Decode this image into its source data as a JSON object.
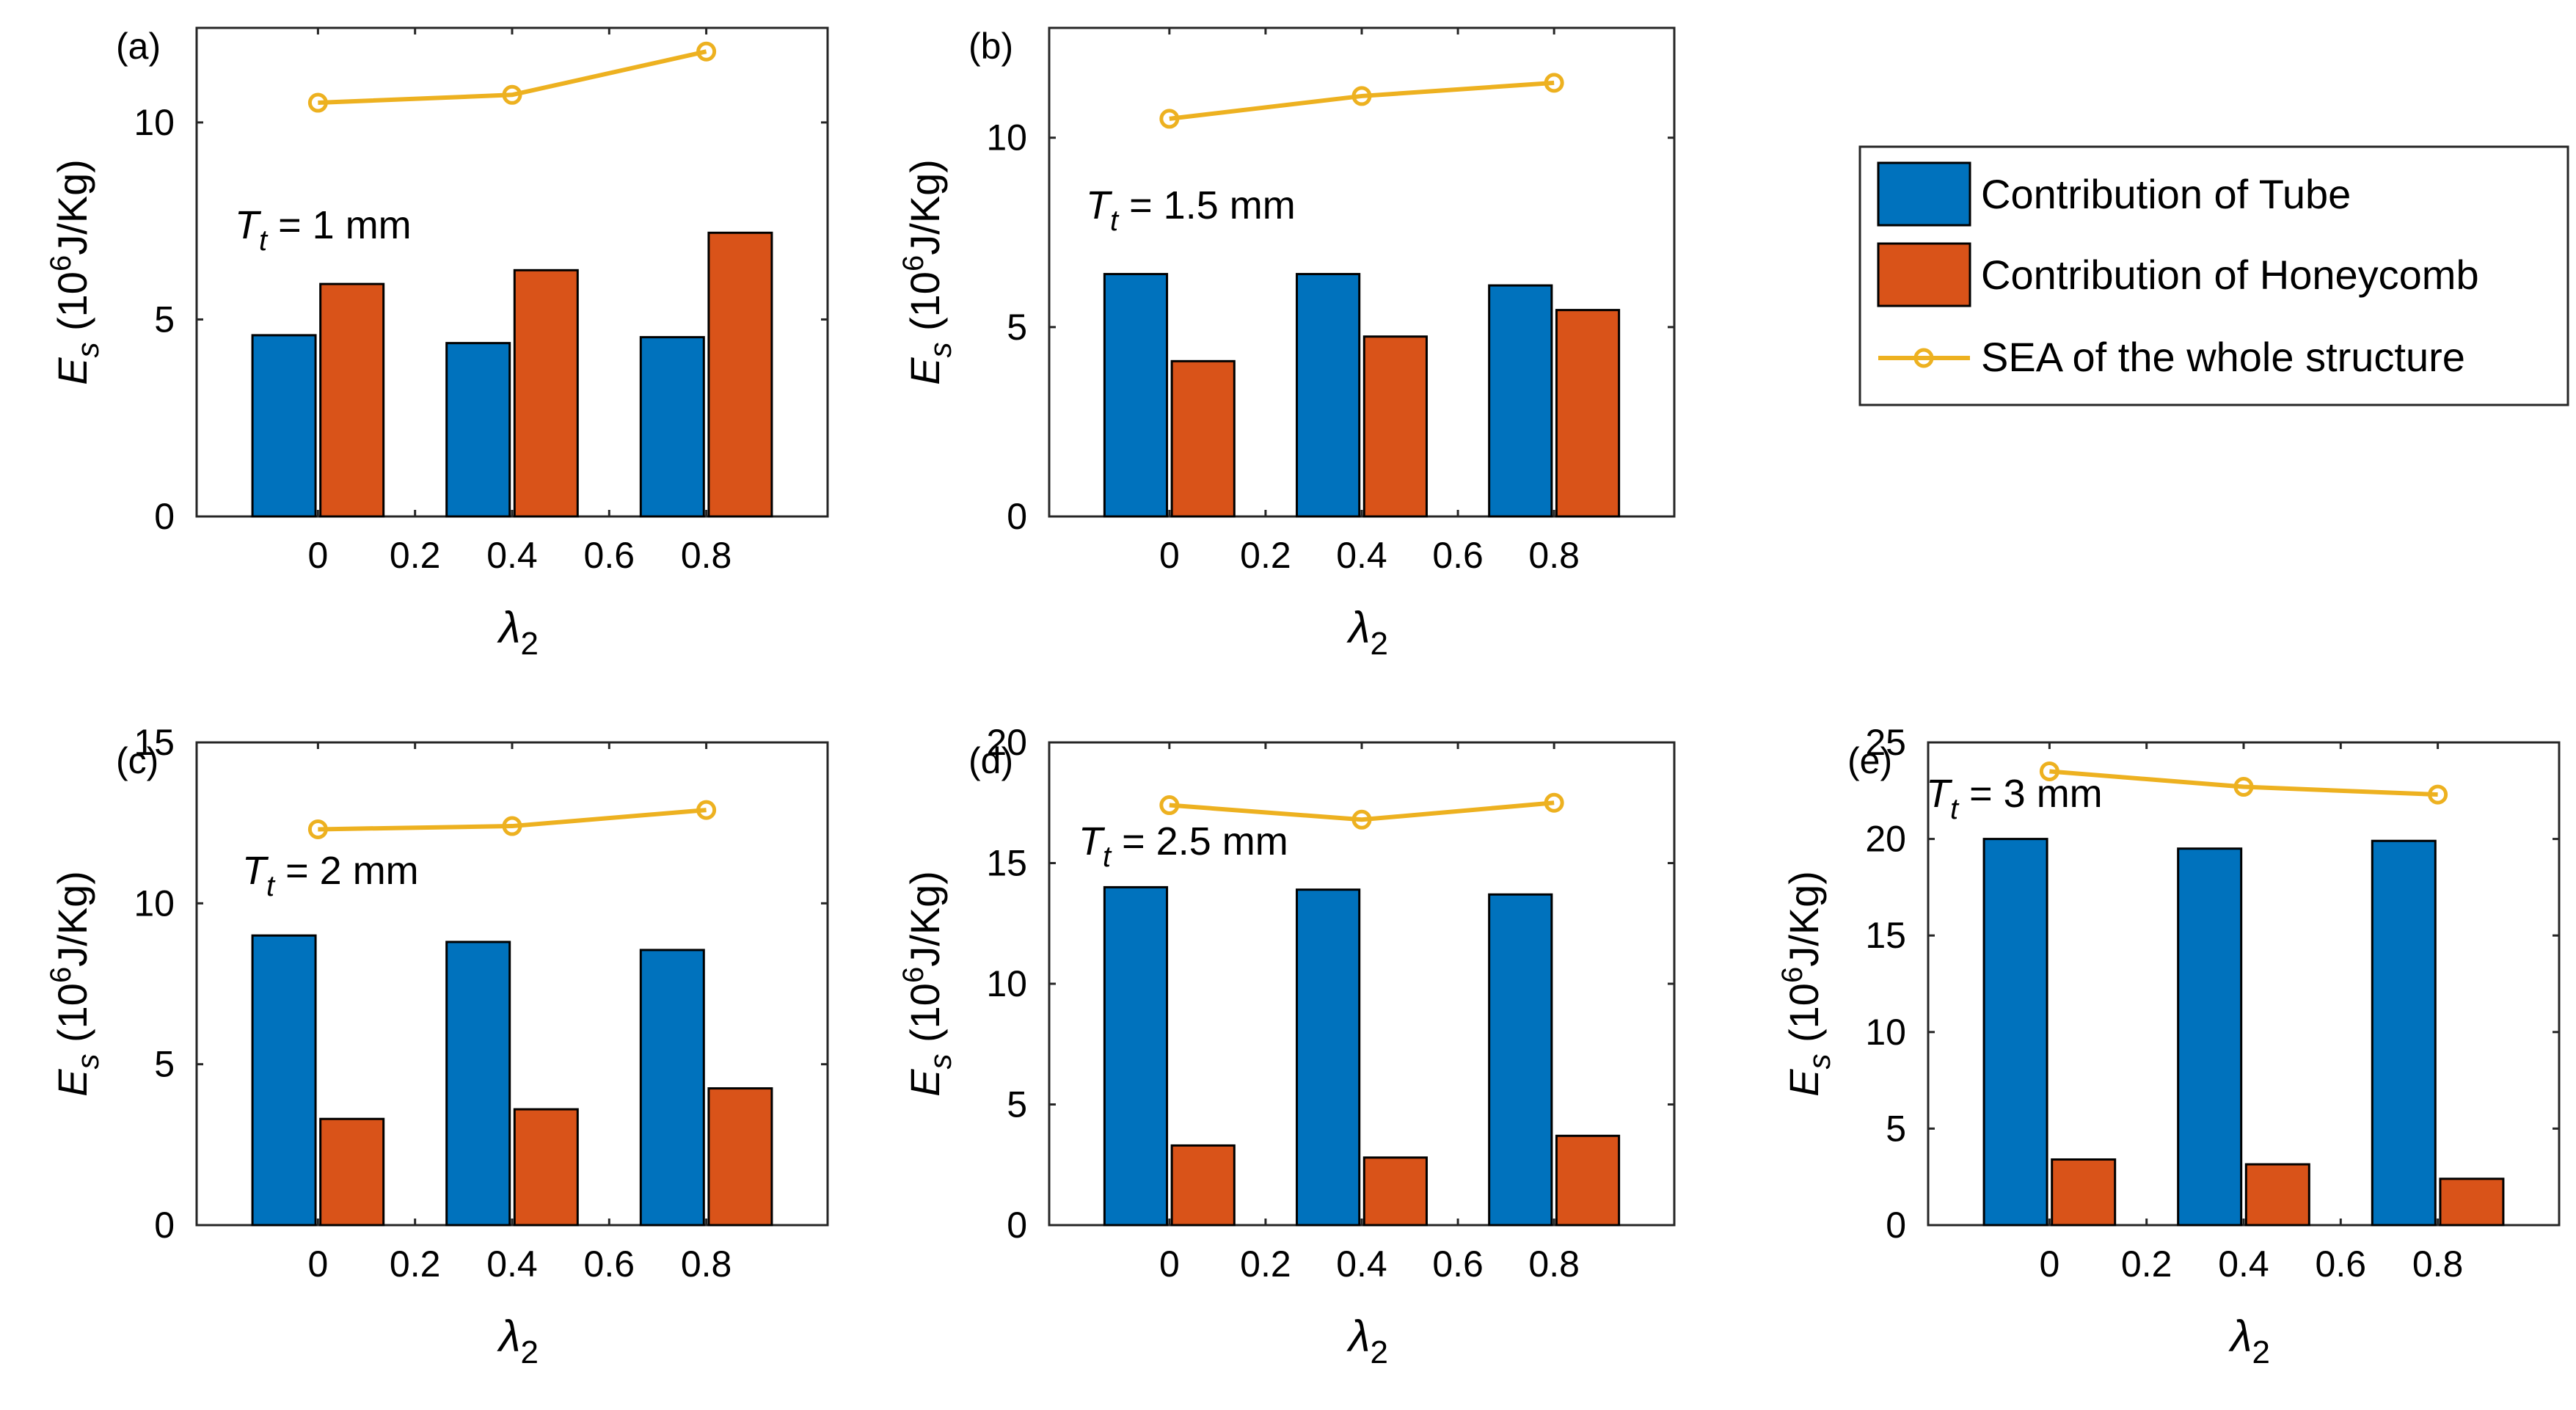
{
  "legend": {
    "tube_label": "Contribution of Tube",
    "honeycomb_label": "Contribution of Honeycomb",
    "sea_label": "SEA of the whole structure"
  },
  "colors": {
    "tube": "#0072BD",
    "honeycomb": "#D95319",
    "sea": "#EDB120"
  },
  "chart_data": [
    {
      "type": "bar",
      "panel_label": "(a)",
      "annotation": {
        "symbol": "T",
        "subscript": "t",
        "value": " = 1 mm"
      },
      "ylabel": {
        "symbol": "E",
        "subscript": "s",
        "open": " (10",
        "exponent": "6",
        "unit": "J/Kg)"
      },
      "xlabel": {
        "symbol": "λ",
        "subscript": "2"
      },
      "xlim": [
        -0.25,
        1.05
      ],
      "ylim": [
        0,
        12.4
      ],
      "xticks": [
        0,
        0.2,
        0.4,
        0.6,
        0.8
      ],
      "xtick_labels": [
        "0",
        "0.2",
        "0.4",
        "0.6",
        "0.8"
      ],
      "yticks": [
        0,
        5,
        10
      ],
      "ytick_labels": [
        "0",
        "5",
        "10"
      ],
      "categories": [
        0,
        0.4,
        0.8
      ],
      "series": [
        {
          "name": "Contribution of Tube",
          "values": [
            4.6,
            4.4,
            4.55
          ]
        },
        {
          "name": "Contribution of Honeycomb",
          "values": [
            5.9,
            6.25,
            7.2
          ]
        },
        {
          "name": "SEA of the whole structure",
          "values": [
            10.5,
            10.7,
            11.8
          ]
        }
      ]
    },
    {
      "type": "bar",
      "panel_label": "(b)",
      "annotation": {
        "symbol": "T",
        "subscript": "t",
        "value": " = 1.5 mm"
      },
      "ylabel": {
        "symbol": "E",
        "subscript": "s",
        "open": " (10",
        "exponent": "6",
        "unit": "J/Kg)"
      },
      "xlabel": {
        "symbol": "λ",
        "subscript": "2"
      },
      "xlim": [
        -0.25,
        1.05
      ],
      "ylim": [
        0,
        12.9
      ],
      "xticks": [
        0,
        0.2,
        0.4,
        0.6,
        0.8
      ],
      "xtick_labels": [
        "0",
        "0.2",
        "0.4",
        "0.6",
        "0.8"
      ],
      "yticks": [
        0,
        5,
        10
      ],
      "ytick_labels": [
        "0",
        "5",
        "10"
      ],
      "categories": [
        0,
        0.4,
        0.8
      ],
      "series": [
        {
          "name": "Contribution of Tube",
          "values": [
            6.4,
            6.4,
            6.1
          ]
        },
        {
          "name": "Contribution of Honeycomb",
          "values": [
            4.1,
            4.75,
            5.45
          ]
        },
        {
          "name": "SEA of the whole structure",
          "values": [
            10.5,
            11.1,
            11.45
          ]
        }
      ]
    },
    {
      "type": "bar",
      "panel_label": "(c)",
      "annotation": {
        "symbol": "T",
        "subscript": "t",
        "value": " = 2 mm"
      },
      "ylabel": {
        "symbol": "E",
        "subscript": "s",
        "open": " (10",
        "exponent": "6",
        "unit": "J/Kg)"
      },
      "xlabel": {
        "symbol": "λ",
        "subscript": "2"
      },
      "xlim": [
        -0.25,
        1.05
      ],
      "ylim": [
        0,
        15
      ],
      "xticks": [
        0,
        0.2,
        0.4,
        0.6,
        0.8
      ],
      "xtick_labels": [
        "0",
        "0.2",
        "0.4",
        "0.6",
        "0.8"
      ],
      "yticks": [
        0,
        5,
        10,
        15
      ],
      "ytick_labels": [
        "0",
        "5",
        "10",
        "15"
      ],
      "categories": [
        0,
        0.4,
        0.8
      ],
      "series": [
        {
          "name": "Contribution of Tube",
          "values": [
            9.0,
            8.8,
            8.55
          ]
        },
        {
          "name": "Contribution of Honeycomb",
          "values": [
            3.3,
            3.6,
            4.25
          ]
        },
        {
          "name": "SEA of the whole structure",
          "values": [
            12.3,
            12.4,
            12.9
          ]
        }
      ]
    },
    {
      "type": "bar",
      "panel_label": "(d)",
      "annotation": {
        "symbol": "T",
        "subscript": "t",
        "value": " = 2.5 mm"
      },
      "ylabel": {
        "symbol": "E",
        "subscript": "s",
        "open": " (10",
        "exponent": "6",
        "unit": "J/Kg)"
      },
      "xlabel": {
        "symbol": "λ",
        "subscript": "2"
      },
      "xlim": [
        -0.25,
        1.05
      ],
      "ylim": [
        0,
        20
      ],
      "xticks": [
        0,
        0.2,
        0.4,
        0.6,
        0.8
      ],
      "xtick_labels": [
        "0",
        "0.2",
        "0.4",
        "0.6",
        "0.8"
      ],
      "yticks": [
        0,
        5,
        10,
        15,
        20
      ],
      "ytick_labels": [
        "0",
        "5",
        "10",
        "15",
        "20"
      ],
      "categories": [
        0,
        0.4,
        0.8
      ],
      "series": [
        {
          "name": "Contribution of Tube",
          "values": [
            14.0,
            13.9,
            13.7
          ]
        },
        {
          "name": "Contribution of Honeycomb",
          "values": [
            3.3,
            2.8,
            3.7
          ]
        },
        {
          "name": "SEA of the whole structure",
          "values": [
            17.4,
            16.8,
            17.5
          ]
        }
      ]
    },
    {
      "type": "bar",
      "panel_label": "(e)",
      "annotation": {
        "symbol": "T",
        "subscript": "t",
        "value": " = 3 mm"
      },
      "ylabel": {
        "symbol": "E",
        "subscript": "s",
        "open": " (10",
        "exponent": "6",
        "unit": "J/Kg)"
      },
      "xlabel": {
        "symbol": "λ",
        "subscript": "2"
      },
      "xlim": [
        -0.25,
        1.05
      ],
      "ylim": [
        0,
        25
      ],
      "xticks": [
        0,
        0.2,
        0.4,
        0.6,
        0.8
      ],
      "xtick_labels": [
        "0",
        "0.2",
        "0.4",
        "0.6",
        "0.8"
      ],
      "yticks": [
        0,
        5,
        10,
        15,
        20,
        25
      ],
      "ytick_labels": [
        "0",
        "5",
        "10",
        "15",
        "20",
        "25"
      ],
      "categories": [
        0,
        0.4,
        0.8
      ],
      "series": [
        {
          "name": "Contribution of Tube",
          "values": [
            20.0,
            19.5,
            19.9
          ]
        },
        {
          "name": "Contribution of Honeycomb",
          "values": [
            3.4,
            3.15,
            2.4
          ]
        },
        {
          "name": "SEA of the whole structure",
          "values": [
            23.5,
            22.7,
            22.3
          ]
        }
      ]
    }
  ]
}
